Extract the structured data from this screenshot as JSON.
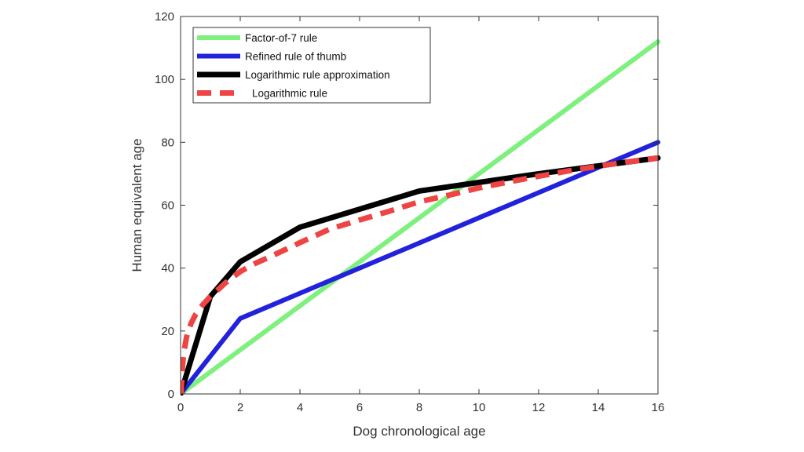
{
  "chart_data": {
    "type": "line",
    "xlabel": "Dog chronological age",
    "ylabel": "Human equivalent age",
    "xlim": [
      0,
      16
    ],
    "ylim": [
      0,
      120
    ],
    "xticks": [
      0,
      2,
      4,
      6,
      8,
      10,
      12,
      14,
      16
    ],
    "yticks": [
      0,
      20,
      40,
      60,
      80,
      100,
      120
    ],
    "grid": false,
    "legend_position": "top-left",
    "series": [
      {
        "name": "Factor-of-7 rule",
        "color": "#7ef07e",
        "style": "solid",
        "x": [
          0,
          16
        ],
        "y": [
          0,
          112
        ]
      },
      {
        "name": "Refined rule of thumb",
        "color": "#2222dd",
        "style": "solid",
        "x": [
          0,
          2,
          16
        ],
        "y": [
          0,
          24,
          80
        ]
      },
      {
        "name": "Logarithmic rule approximation",
        "color": "#000000",
        "style": "solid",
        "x": [
          0,
          1,
          2,
          4,
          8,
          12,
          16
        ],
        "y": [
          0,
          31,
          42,
          53,
          64.5,
          70,
          75
        ]
      },
      {
        "name": "Logarithmic rule",
        "color": "#ee4444",
        "style": "dashed",
        "x": [
          0.02,
          0.05,
          0.1,
          0.2,
          0.35,
          0.5,
          0.75,
          1,
          1.25,
          1.5,
          2,
          2.5,
          3,
          4,
          5,
          6,
          7,
          8,
          9,
          10,
          11,
          12,
          13,
          14,
          15,
          16
        ],
        "y": [
          0,
          7.2,
          12.6,
          18.1,
          22.4,
          25.2,
          28.4,
          31,
          33.1,
          35.3,
          38.9,
          41.5,
          43.6,
          48.1,
          52.4,
          55.3,
          58.1,
          61.1,
          63.2,
          65.5,
          67.4,
          69.2,
          70.9,
          72.4,
          73.8,
          75
        ]
      }
    ]
  }
}
